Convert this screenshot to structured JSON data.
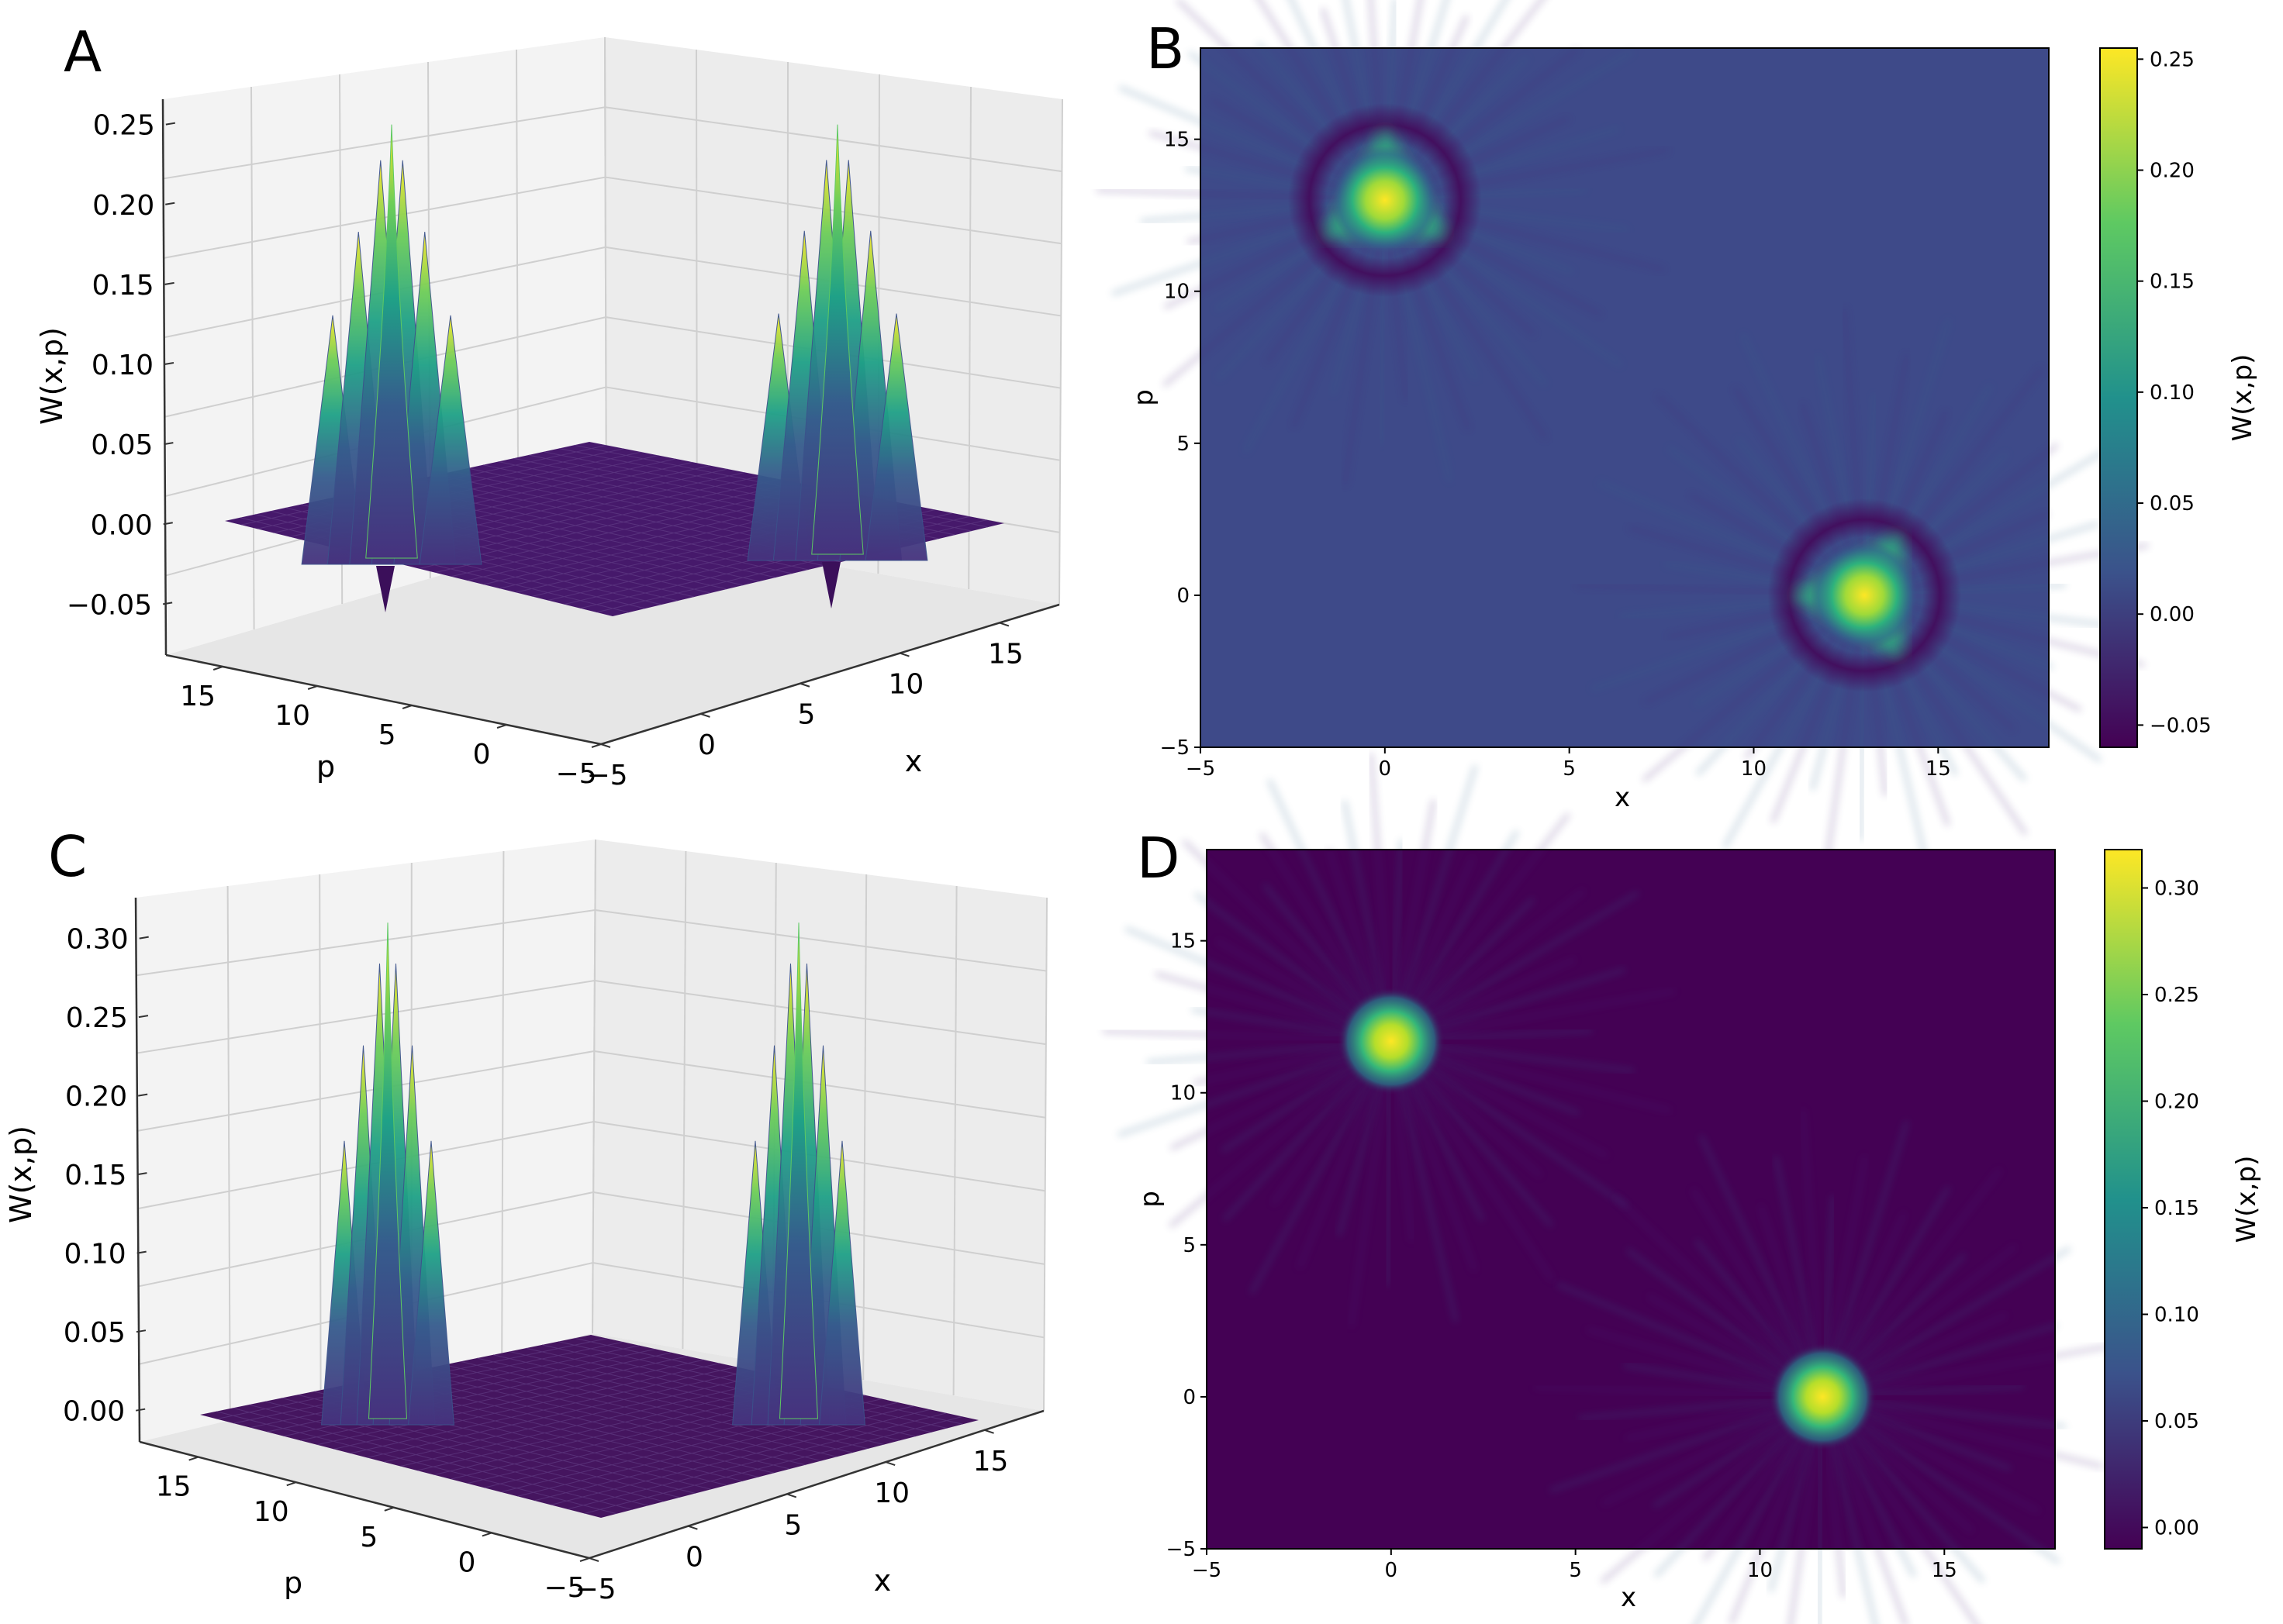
{
  "chart_data": [
    {
      "panel": "A",
      "type": "surface3d",
      "description_axes": {
        "xlabel": "x",
        "ylabel": "p",
        "zlabel": "W(x,p)"
      },
      "xlim": [
        -5,
        18
      ],
      "ylim": [
        -5,
        18
      ],
      "zlim": [
        -0.06,
        0.26
      ],
      "xticks": [
        "−5",
        "0",
        "5",
        "10",
        "15"
      ],
      "yticks": [
        "15",
        "10",
        "5",
        "0",
        "−5"
      ],
      "zticks": [
        "0.25",
        "0.20",
        "0.15",
        "0.10",
        "0.05",
        "0.00",
        "−0.05"
      ],
      "peaks": [
        {
          "x": 0,
          "p": 13,
          "value": 0.25
        },
        {
          "x": 13,
          "p": 0,
          "value": 0.25
        }
      ],
      "min_value": -0.05,
      "colormap": [
        "#440154",
        "#3b528b",
        "#21918c",
        "#5ec962",
        "#fde725"
      ]
    },
    {
      "panel": "B",
      "type": "heatmap",
      "xlabel": "x",
      "ylabel": "p",
      "colorbar_label": "W(x,p)",
      "xlim": [
        -5,
        18
      ],
      "ylim": [
        -5,
        18
      ],
      "xticks": [
        "−5",
        "0",
        "5",
        "10",
        "15"
      ],
      "yticks": [
        "15",
        "10",
        "5",
        "0",
        "−5"
      ],
      "colorbar_ticks": [
        "0.25",
        "0.20",
        "0.15",
        "0.10",
        "0.05",
        "0.00",
        "−0.05"
      ],
      "colorbar_range": [
        -0.06,
        0.255
      ],
      "peaks": [
        {
          "x": 0,
          "p": 13,
          "value": 0.25,
          "shape": "triangular"
        },
        {
          "x": 13,
          "p": 0,
          "value": 0.25,
          "shape": "triangular"
        }
      ],
      "colormap": [
        "#440154",
        "#3b528b",
        "#21918c",
        "#5ec962",
        "#fde725"
      ]
    },
    {
      "panel": "C",
      "type": "surface3d",
      "description_axes": {
        "xlabel": "x",
        "ylabel": "p",
        "zlabel": "W(x,p)"
      },
      "xlim": [
        -5,
        18
      ],
      "ylim": [
        -5,
        18
      ],
      "zlim": [
        -0.01,
        0.32
      ],
      "xticks": [
        "−5",
        "0",
        "5",
        "10",
        "15"
      ],
      "yticks": [
        "15",
        "10",
        "5",
        "0",
        "−5"
      ],
      "zticks": [
        "0.30",
        "0.25",
        "0.20",
        "0.15",
        "0.10",
        "0.05",
        "0.00"
      ],
      "peaks": [
        {
          "x": 0,
          "p": 11.7,
          "value": 0.31
        },
        {
          "x": 11.7,
          "p": 0,
          "value": 0.31
        }
      ],
      "colormap": [
        "#440154",
        "#3b528b",
        "#21918c",
        "#5ec962",
        "#fde725"
      ]
    },
    {
      "panel": "D",
      "type": "heatmap",
      "xlabel": "x",
      "ylabel": "p",
      "colorbar_label": "W(x,p)",
      "xlim": [
        -5,
        18
      ],
      "ylim": [
        -5,
        18
      ],
      "xticks": [
        "−5",
        "0",
        "5",
        "10",
        "15"
      ],
      "yticks": [
        "15",
        "10",
        "5",
        "0",
        "−5"
      ],
      "colorbar_ticks": [
        "0.30",
        "0.25",
        "0.20",
        "0.15",
        "0.10",
        "0.05",
        "0.00"
      ],
      "colorbar_range": [
        -0.01,
        0.318
      ],
      "peaks": [
        {
          "x": 0,
          "p": 11.7,
          "value": 0.31,
          "shape": "gaussian"
        },
        {
          "x": 11.7,
          "p": 0,
          "value": 0.31,
          "shape": "gaussian"
        }
      ],
      "colormap": [
        "#440154",
        "#3b528b",
        "#21918c",
        "#5ec962",
        "#fde725"
      ]
    }
  ]
}
